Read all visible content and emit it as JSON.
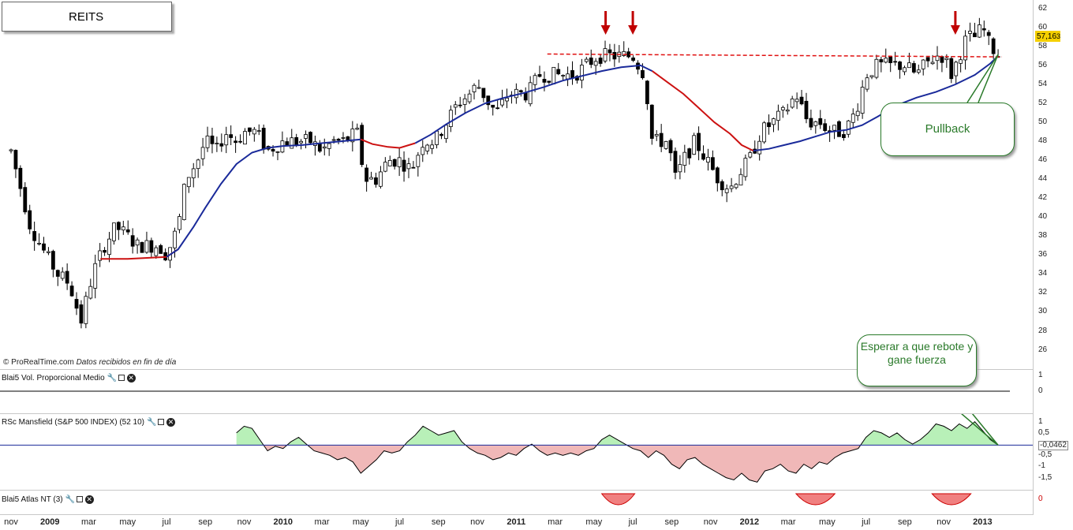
{
  "chart_title": "REITS",
  "credit": {
    "brand": "© ProRealTime.com",
    "note": "Datos recibidos en fin de día"
  },
  "callouts": {
    "pullback": "Pullback",
    "wait": "Esperar a que rebote y gane fuerza"
  },
  "price_tag": "57,16",
  "price_tag_suffix": "3",
  "indicators": {
    "volume": {
      "label": "Blai5 Vol. Proporcional Medio",
      "ticks": [
        "1",
        "0"
      ]
    },
    "mansfield": {
      "label": "RSc Mansfield (S&P 500 INDEX) (52 10)",
      "ticks": [
        "1",
        "0,5",
        "-0,0462",
        "-0,5",
        "-1",
        "-1,5"
      ]
    },
    "atlas": {
      "label": "Blai5 Atlas NT (3)",
      "ticks": [
        "0"
      ]
    }
  },
  "colors": {
    "candle_up": "#ffffff",
    "candle_down": "#000000",
    "ma_up": "#1a2a9a",
    "ma_down": "#cc1111",
    "resistance": "#e01010",
    "arrow": "#c00000",
    "rs_pos": "#b8f0b8",
    "rs_neg": "#f0b8b8"
  },
  "chart_data": {
    "type": "candlestick",
    "title": "REITS",
    "y_ticks": [
      26,
      28,
      30,
      32,
      34,
      36,
      38,
      40,
      42,
      44,
      46,
      48,
      50,
      52,
      54,
      56,
      58,
      60,
      62
    ],
    "ylim": [
      24.8,
      62.4
    ],
    "x_labels": [
      {
        "label": "nov",
        "t": 0
      },
      {
        "label": "2009",
        "t": 2,
        "year": true
      },
      {
        "label": "mar",
        "t": 4
      },
      {
        "label": "may",
        "t": 6
      },
      {
        "label": "jul",
        "t": 8
      },
      {
        "label": "sep",
        "t": 10
      },
      {
        "label": "nov",
        "t": 12
      },
      {
        "label": "2010",
        "t": 14,
        "year": true
      },
      {
        "label": "mar",
        "t": 16
      },
      {
        "label": "may",
        "t": 18
      },
      {
        "label": "jul",
        "t": 20
      },
      {
        "label": "sep",
        "t": 22
      },
      {
        "label": "nov",
        "t": 24
      },
      {
        "label": "2011",
        "t": 26,
        "year": true
      },
      {
        "label": "mar",
        "t": 28
      },
      {
        "label": "may",
        "t": 30
      },
      {
        "label": "jul",
        "t": 32
      },
      {
        "label": "sep",
        "t": 34
      },
      {
        "label": "nov",
        "t": 36
      },
      {
        "label": "2012",
        "t": 38,
        "year": true
      },
      {
        "label": "mar",
        "t": 40
      },
      {
        "label": "may",
        "t": 42
      },
      {
        "label": "jul",
        "t": 44
      },
      {
        "label": "sep",
        "t": 46
      },
      {
        "label": "nov",
        "t": 48
      },
      {
        "label": "2013",
        "t": 50,
        "year": true
      }
    ],
    "close_path": [
      [
        0,
        47
      ],
      [
        1,
        39
      ],
      [
        1.8,
        36
      ],
      [
        2.4,
        34
      ],
      [
        3,
        33
      ],
      [
        3.6,
        29
      ],
      [
        4.2,
        34
      ],
      [
        4.8,
        37
      ],
      [
        5.4,
        39
      ],
      [
        6,
        38
      ],
      [
        6.5,
        37
      ],
      [
        7,
        37
      ],
      [
        7.6,
        37
      ],
      [
        8,
        36
      ],
      [
        8.6,
        39
      ],
      [
        9,
        44
      ],
      [
        9.6,
        46
      ],
      [
        10,
        48
      ],
      [
        10.6,
        47
      ],
      [
        11,
        49
      ],
      [
        11.6,
        48
      ],
      [
        12,
        49
      ],
      [
        12.6,
        49
      ],
      [
        13.2,
        47
      ],
      [
        14,
        48
      ],
      [
        14.6,
        48
      ],
      [
        15.4,
        48
      ],
      [
        16,
        47
      ],
      [
        16.6,
        48
      ],
      [
        17.2,
        48
      ],
      [
        17.8,
        49
      ],
      [
        18.2,
        44
      ],
      [
        18.8,
        44
      ],
      [
        19.4,
        46
      ],
      [
        20,
        46
      ],
      [
        20.6,
        45
      ],
      [
        21.2,
        48
      ],
      [
        21.8,
        48
      ],
      [
        22.4,
        50
      ],
      [
        23,
        52
      ],
      [
        23.6,
        53
      ],
      [
        24,
        54
      ],
      [
        24.6,
        52
      ],
      [
        25,
        51
      ],
      [
        25.6,
        53
      ],
      [
        26,
        53
      ],
      [
        26.6,
        53
      ],
      [
        27.2,
        55
      ],
      [
        27.8,
        55
      ],
      [
        28.4,
        55
      ],
      [
        29,
        55
      ],
      [
        29.6,
        56
      ],
      [
        30.2,
        57
      ],
      [
        30.8,
        57
      ],
      [
        31.4,
        57
      ],
      [
        32,
        57
      ],
      [
        32.6,
        55
      ],
      [
        33,
        48
      ],
      [
        33.4,
        48
      ],
      [
        33.8,
        48
      ],
      [
        34.2,
        44
      ],
      [
        34.6,
        46
      ],
      [
        35.2,
        48
      ],
      [
        35.8,
        46
      ],
      [
        36.4,
        44
      ],
      [
        37,
        43
      ],
      [
        37.6,
        45
      ],
      [
        38,
        46
      ],
      [
        38.6,
        49
      ],
      [
        39.2,
        50
      ],
      [
        39.8,
        51
      ],
      [
        40.4,
        53
      ],
      [
        41,
        50
      ],
      [
        41.6,
        50
      ],
      [
        42.2,
        49
      ],
      [
        42.8,
        49
      ],
      [
        43.2,
        50
      ],
      [
        43.6,
        52
      ],
      [
        44,
        55
      ],
      [
        44.6,
        56
      ],
      [
        45,
        56
      ],
      [
        45.6,
        56
      ],
      [
        46,
        56
      ],
      [
        46.6,
        55
      ],
      [
        47,
        56
      ],
      [
        47.6,
        57
      ],
      [
        48,
        57
      ],
      [
        48.4,
        55
      ],
      [
        48.8,
        57
      ],
      [
        49.2,
        59
      ],
      [
        49.6,
        59
      ],
      [
        50,
        60
      ],
      [
        50.4,
        58
      ],
      [
        50.8,
        57.2
      ]
    ],
    "moving_average": [
      [
        4.6,
        35.6
      ],
      [
        6,
        35.6
      ],
      [
        7,
        35.7
      ],
      [
        8,
        35.8
      ],
      [
        8.6,
        36.6
      ],
      [
        9.4,
        39
      ],
      [
        10,
        41
      ],
      [
        10.8,
        43.5
      ],
      [
        11.6,
        45.6
      ],
      [
        12.4,
        46.8
      ],
      [
        13.2,
        47.3
      ],
      [
        14,
        47.5
      ],
      [
        15,
        47.6
      ],
      [
        16,
        47.8
      ],
      [
        17,
        48
      ],
      [
        18,
        48.2
      ],
      [
        18.6,
        47.7
      ],
      [
        19.4,
        47.4
      ],
      [
        20,
        47.3
      ],
      [
        20.8,
        47.8
      ],
      [
        21.6,
        48.7
      ],
      [
        22.4,
        49.8
      ],
      [
        23.4,
        51
      ],
      [
        24.4,
        52
      ],
      [
        25.4,
        52.6
      ],
      [
        26.4,
        53.1
      ],
      [
        27.4,
        53.7
      ],
      [
        28.4,
        54.4
      ],
      [
        29.4,
        54.9
      ],
      [
        30.4,
        55.4
      ],
      [
        31.4,
        55.8
      ],
      [
        32.4,
        56
      ],
      [
        33,
        55.4
      ],
      [
        33.8,
        54.2
      ],
      [
        34.6,
        53
      ],
      [
        35.4,
        51.5
      ],
      [
        36.2,
        50
      ],
      [
        37,
        48.8
      ],
      [
        37.6,
        47.6
      ],
      [
        38.2,
        47
      ],
      [
        39,
        47.2
      ],
      [
        39.8,
        47.6
      ],
      [
        40.6,
        48
      ],
      [
        41.4,
        48.5
      ],
      [
        42.2,
        49
      ],
      [
        43,
        49.2
      ],
      [
        43.8,
        49.7
      ],
      [
        44.6,
        50.6
      ],
      [
        45.6,
        51.8
      ],
      [
        46.6,
        52.6
      ],
      [
        47.6,
        53.2
      ],
      [
        48.6,
        54
      ],
      [
        49.6,
        55
      ],
      [
        50.4,
        56.2
      ],
      [
        50.8,
        57
      ]
    ],
    "ma_color_segments": [
      {
        "from": 4.6,
        "to": 8,
        "color": "red"
      },
      {
        "from": 8,
        "to": 17.5,
        "color": "blue"
      },
      {
        "from": 17.5,
        "to": 20.4,
        "color": "red"
      },
      {
        "from": 20.4,
        "to": 32.5,
        "color": "blue"
      },
      {
        "from": 32.5,
        "to": 38.2,
        "color": "red"
      },
      {
        "from": 38.2,
        "to": 50.8,
        "color": "blue"
      }
    ],
    "resistance_line": [
      [
        27.6,
        57.2
      ],
      [
        51,
        56.9
      ]
    ],
    "resistance_arrows_t": [
      30.6,
      32,
      48.6
    ],
    "last_close": 57.16,
    "rs_mansfield": {
      "ylim": [
        -1.9,
        1.2
      ],
      "baseline": -0.0462,
      "points": [
        [
          11.6,
          0.5
        ],
        [
          12,
          0.8
        ],
        [
          12.4,
          0.7
        ],
        [
          12.8,
          0.2
        ],
        [
          13.2,
          -0.3
        ],
        [
          13.6,
          -0.1
        ],
        [
          14,
          -0.2
        ],
        [
          14.4,
          0.1
        ],
        [
          14.8,
          0.3
        ],
        [
          15.2,
          0
        ],
        [
          15.6,
          -0.3
        ],
        [
          16,
          -0.4
        ],
        [
          16.4,
          -0.5
        ],
        [
          16.8,
          -0.7
        ],
        [
          17.2,
          -0.6
        ],
        [
          17.6,
          -0.8
        ],
        [
          18,
          -1.3
        ],
        [
          18.4,
          -1
        ],
        [
          18.8,
          -0.7
        ],
        [
          19.2,
          -0.3
        ],
        [
          19.6,
          -0.4
        ],
        [
          20,
          -0.3
        ],
        [
          20.4,
          0.1
        ],
        [
          20.8,
          0.4
        ],
        [
          21.2,
          0.8
        ],
        [
          21.6,
          0.6
        ],
        [
          22,
          0.4
        ],
        [
          22.4,
          0.5
        ],
        [
          22.8,
          0.6
        ],
        [
          23.2,
          0.1
        ],
        [
          23.6,
          -0.2
        ],
        [
          24,
          -0.4
        ],
        [
          24.4,
          -0.5
        ],
        [
          24.8,
          -0.7
        ],
        [
          25.2,
          -0.6
        ],
        [
          25.6,
          -0.4
        ],
        [
          26,
          -0.5
        ],
        [
          26.4,
          -0.2
        ],
        [
          26.8,
          0
        ],
        [
          27.2,
          -0.3
        ],
        [
          27.6,
          -0.5
        ],
        [
          28,
          -0.4
        ],
        [
          28.4,
          -0.5
        ],
        [
          28.8,
          -0.4
        ],
        [
          29.2,
          -0.5
        ],
        [
          29.6,
          -0.3
        ],
        [
          30,
          -0.2
        ],
        [
          30.4,
          0.2
        ],
        [
          30.8,
          0.4
        ],
        [
          31.2,
          0.2
        ],
        [
          31.6,
          0
        ],
        [
          32,
          -0.2
        ],
        [
          32.4,
          -0.3
        ],
        [
          32.8,
          -0.6
        ],
        [
          33.2,
          -0.3
        ],
        [
          33.6,
          -0.5
        ],
        [
          34,
          -0.9
        ],
        [
          34.4,
          -1.1
        ],
        [
          34.8,
          -0.7
        ],
        [
          35.2,
          -0.6
        ],
        [
          35.6,
          -0.9
        ],
        [
          36,
          -1.1
        ],
        [
          36.4,
          -1.3
        ],
        [
          36.8,
          -1.5
        ],
        [
          37.2,
          -1.6
        ],
        [
          37.6,
          -1.3
        ],
        [
          38,
          -1.6
        ],
        [
          38.4,
          -1.7
        ],
        [
          38.8,
          -1.2
        ],
        [
          39.2,
          -1.1
        ],
        [
          39.6,
          -0.9
        ],
        [
          40,
          -1.2
        ],
        [
          40.4,
          -1.3
        ],
        [
          40.8,
          -0.9
        ],
        [
          41.2,
          -1.1
        ],
        [
          41.6,
          -0.8
        ],
        [
          42,
          -0.9
        ],
        [
          42.4,
          -0.6
        ],
        [
          42.8,
          -0.4
        ],
        [
          43.2,
          -0.3
        ],
        [
          43.6,
          -0.2
        ],
        [
          44,
          0.3
        ],
        [
          44.4,
          0.6
        ],
        [
          44.8,
          0.5
        ],
        [
          45.2,
          0.3
        ],
        [
          45.6,
          0.5
        ],
        [
          46,
          0.2
        ],
        [
          46.4,
          0
        ],
        [
          46.8,
          0.2
        ],
        [
          47.2,
          0.5
        ],
        [
          47.6,
          0.9
        ],
        [
          48,
          0.8
        ],
        [
          48.4,
          0.6
        ],
        [
          48.8,
          0.9
        ],
        [
          49.2,
          0.7
        ],
        [
          49.6,
          1
        ],
        [
          50,
          0.6
        ],
        [
          50.4,
          0.2
        ],
        [
          50.8,
          -0.05
        ]
      ]
    },
    "atlas_nt": {
      "humps": [
        [
          30.4,
          32.1
        ],
        [
          40.4,
          42.4
        ],
        [
          47.4,
          49.4
        ]
      ]
    }
  }
}
